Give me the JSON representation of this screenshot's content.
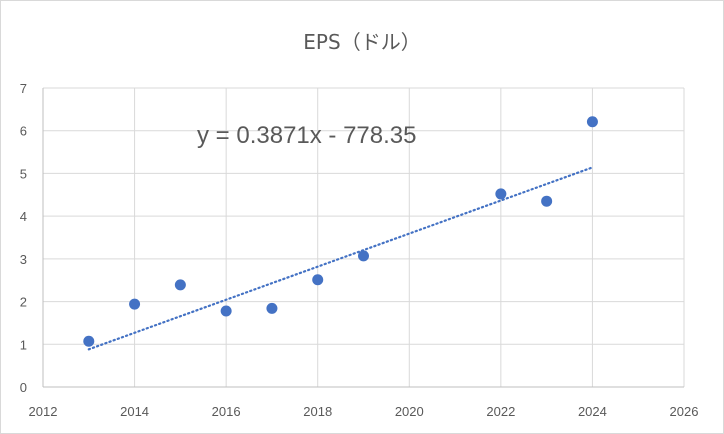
{
  "chart_data": {
    "type": "scatter",
    "title": "EPS（ドル）",
    "xlabel": "",
    "ylabel": "",
    "xlim": [
      2012,
      2026
    ],
    "ylim": [
      0,
      7
    ],
    "x_ticks": [
      "2012",
      "2014",
      "2016",
      "2018",
      "2020",
      "2022",
      "2024",
      "2026"
    ],
    "y_ticks": [
      "0",
      "1",
      "2",
      "3",
      "4",
      "5",
      "6",
      "7"
    ],
    "grid": true,
    "legend": "none",
    "series": [
      {
        "color": "#4472c4",
        "points": [
          {
            "x": 2013,
            "y": 1.07
          },
          {
            "x": 2014,
            "y": 1.94
          },
          {
            "x": 2015,
            "y": 2.39
          },
          {
            "x": 2016,
            "y": 1.78
          },
          {
            "x": 2017,
            "y": 1.84
          },
          {
            "x": 2018,
            "y": 2.51
          },
          {
            "x": 2019,
            "y": 3.07
          },
          {
            "x": 2022,
            "y": 4.52
          },
          {
            "x": 2023,
            "y": 4.35
          },
          {
            "x": 2024,
            "y": 6.21
          }
        ]
      }
    ],
    "trendline": {
      "type": "linear",
      "slope": 0.3871,
      "intercept": -778.35,
      "x_range": [
        2013,
        2024
      ],
      "color": "#4472c4",
      "style": "dotted",
      "equation_label": "y = 0.3871x - 778.35"
    }
  }
}
